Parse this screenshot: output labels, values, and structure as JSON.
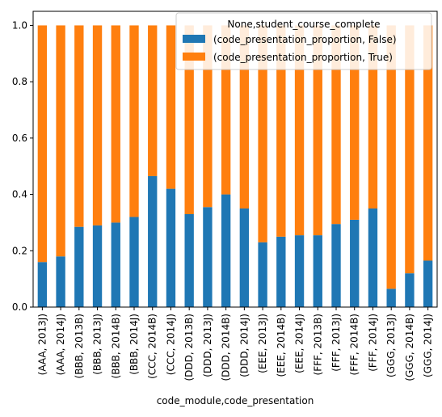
{
  "chart_data": {
    "type": "bar",
    "stacked": true,
    "xlabel": "code_module,code_presentation",
    "ylabel": "",
    "ylim": [
      0,
      1.05
    ],
    "yticks": [
      "0.0",
      "0.2",
      "0.4",
      "0.6",
      "0.8",
      "1.0"
    ],
    "ytick_values": [
      0,
      0.2,
      0.4,
      0.6,
      0.8,
      1.0
    ],
    "grid": false,
    "legend": {
      "title": "None,student_course_complete",
      "placement": "top-right"
    },
    "categories": [
      "(AAA, 2013J)",
      "(AAA, 2014J)",
      "(BBB, 2013B)",
      "(BBB, 2013J)",
      "(BBB, 2014B)",
      "(BBB, 2014J)",
      "(CCC, 2014B)",
      "(CCC, 2014J)",
      "(DDD, 2013B)",
      "(DDD, 2013J)",
      "(DDD, 2014B)",
      "(DDD, 2014J)",
      "(EEE, 2013J)",
      "(EEE, 2014B)",
      "(EEE, 2014J)",
      "(FFF, 2013B)",
      "(FFF, 2013J)",
      "(FFF, 2014B)",
      "(FFF, 2014J)",
      "(GGG, 2013J)",
      "(GGG, 2014B)",
      "(GGG, 2014J)"
    ],
    "series": [
      {
        "name": "(code_presentation_proportion, False)",
        "color": "#1f77b4",
        "values": [
          0.16,
          0.18,
          0.285,
          0.29,
          0.3,
          0.32,
          0.465,
          0.42,
          0.33,
          0.355,
          0.4,
          0.35,
          0.23,
          0.25,
          0.255,
          0.255,
          0.295,
          0.31,
          0.35,
          0.065,
          0.12,
          0.165
        ]
      },
      {
        "name": "(code_presentation_proportion, True)",
        "color": "#ff7f0e",
        "values": [
          0.84,
          0.82,
          0.715,
          0.71,
          0.7,
          0.68,
          0.535,
          0.58,
          0.67,
          0.645,
          0.6,
          0.65,
          0.77,
          0.75,
          0.745,
          0.745,
          0.705,
          0.69,
          0.65,
          0.935,
          0.88,
          0.835
        ]
      }
    ]
  }
}
